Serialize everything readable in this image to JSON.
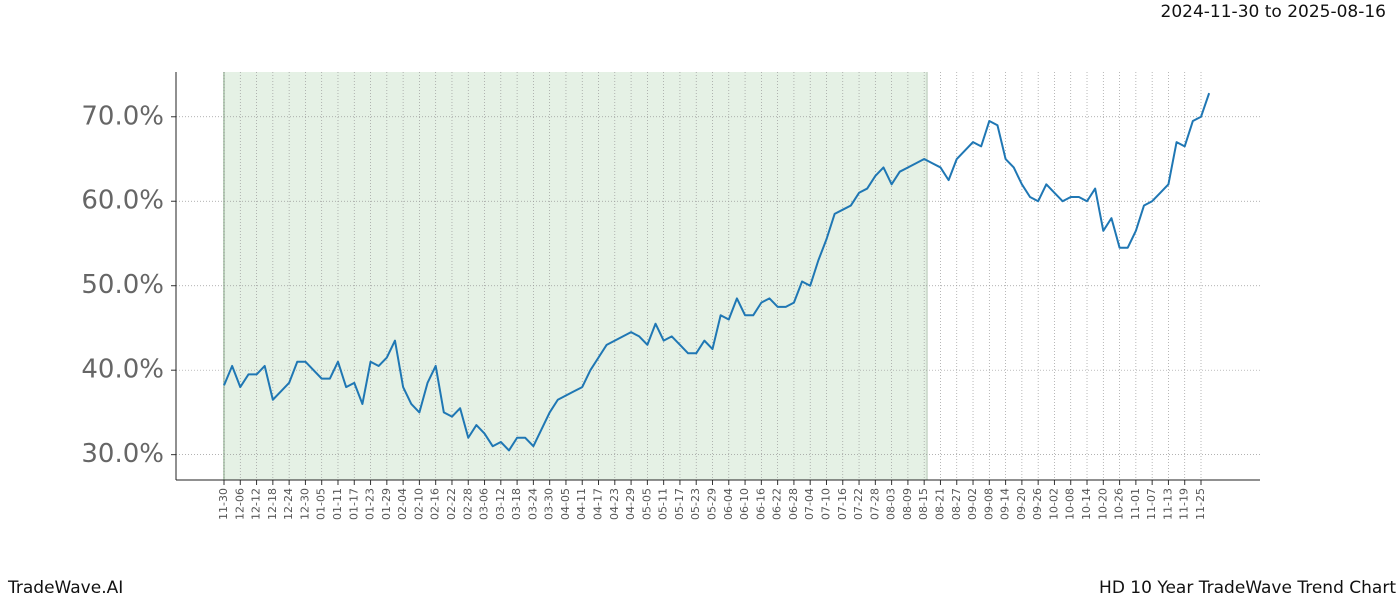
{
  "chart_data": {
    "type": "line",
    "title": "2024-11-30 to 2025-08-16",
    "footer_left": "TradeWave.AI",
    "footer_right": "HD 10 Year TradeWave Trend Chart",
    "categories": [
      "11-30",
      null,
      "12-06",
      null,
      "12-12",
      null,
      "12-18",
      null,
      "12-24",
      null,
      "12-30",
      null,
      "01-05",
      null,
      "01-11",
      null,
      "01-17",
      null,
      "01-23",
      null,
      "01-29",
      null,
      "02-04",
      null,
      "02-10",
      null,
      "02-16",
      null,
      "02-22",
      null,
      "02-28",
      null,
      "03-06",
      null,
      "03-12",
      null,
      "03-18",
      null,
      "03-24",
      null,
      "03-30",
      null,
      "04-05",
      null,
      "04-11",
      null,
      "04-17",
      null,
      "04-23",
      null,
      "04-29",
      null,
      "05-05",
      null,
      "05-11",
      null,
      "05-17",
      null,
      "05-23",
      null,
      "05-29",
      null,
      "06-04",
      null,
      "06-10",
      null,
      "06-16",
      null,
      "06-22",
      null,
      "06-28",
      null,
      "07-04",
      null,
      "07-10",
      null,
      "07-16",
      null,
      "07-22",
      null,
      "07-28",
      null,
      "08-03",
      null,
      "08-09",
      null,
      "08-15",
      null,
      "08-21",
      null,
      "08-27",
      null,
      "09-02",
      null,
      "09-08",
      null,
      "09-14",
      null,
      "09-20",
      null,
      "09-26",
      null,
      "10-02",
      null,
      "10-08",
      null,
      "10-14",
      null,
      "10-20",
      null,
      "10-26",
      null,
      "11-01",
      null,
      "11-07",
      null,
      "11-13",
      null,
      "11-19",
      null,
      "11-25",
      null
    ],
    "values": [
      38.2,
      40.5,
      38,
      39.5,
      39.5,
      40.5,
      36.5,
      37.5,
      38.5,
      41,
      41,
      40,
      39,
      39,
      41,
      38,
      38.5,
      36,
      41,
      40.5,
      41.5,
      43.5,
      38,
      36,
      35,
      38.5,
      40.5,
      35,
      34.5,
      35.5,
      32,
      33.5,
      32.5,
      31,
      31.5,
      30.5,
      32,
      32,
      31,
      33,
      35,
      36.5,
      37,
      37.5,
      38,
      40,
      41.5,
      43,
      43.5,
      44,
      44.5,
      44,
      43,
      45.5,
      43.5,
      44,
      43,
      42,
      42,
      43.5,
      42.5,
      46.5,
      46,
      48.5,
      46.5,
      46.5,
      48,
      48.5,
      47.5,
      47.5,
      48,
      50.5,
      50,
      53,
      55.5,
      58.5,
      59,
      59.5,
      61,
      61.5,
      63,
      64,
      62,
      63.5,
      64,
      64.5,
      65,
      64.5,
      64,
      62.5,
      65,
      66,
      67,
      66.5,
      69.5,
      69,
      65,
      64,
      62,
      60.5,
      60,
      62,
      61,
      60,
      60.5,
      60.5,
      60,
      61.5,
      56.5,
      58,
      54.5,
      54.5,
      56.5,
      59.5,
      60,
      61,
      62,
      67,
      66.5,
      69.5,
      70,
      72.8
    ],
    "color": "#1f77b4",
    "shade_color": "#e5f1e5",
    "ylim": [
      27,
      75.3
    ],
    "yticks": [
      {
        "value": 30,
        "label": "30.0%"
      },
      {
        "value": 40,
        "label": "40.0%"
      },
      {
        "value": 50,
        "label": "50.0%"
      },
      {
        "value": 60,
        "label": "60.0%"
      },
      {
        "value": 70,
        "label": "70.0%"
      }
    ],
    "grid": true
  }
}
